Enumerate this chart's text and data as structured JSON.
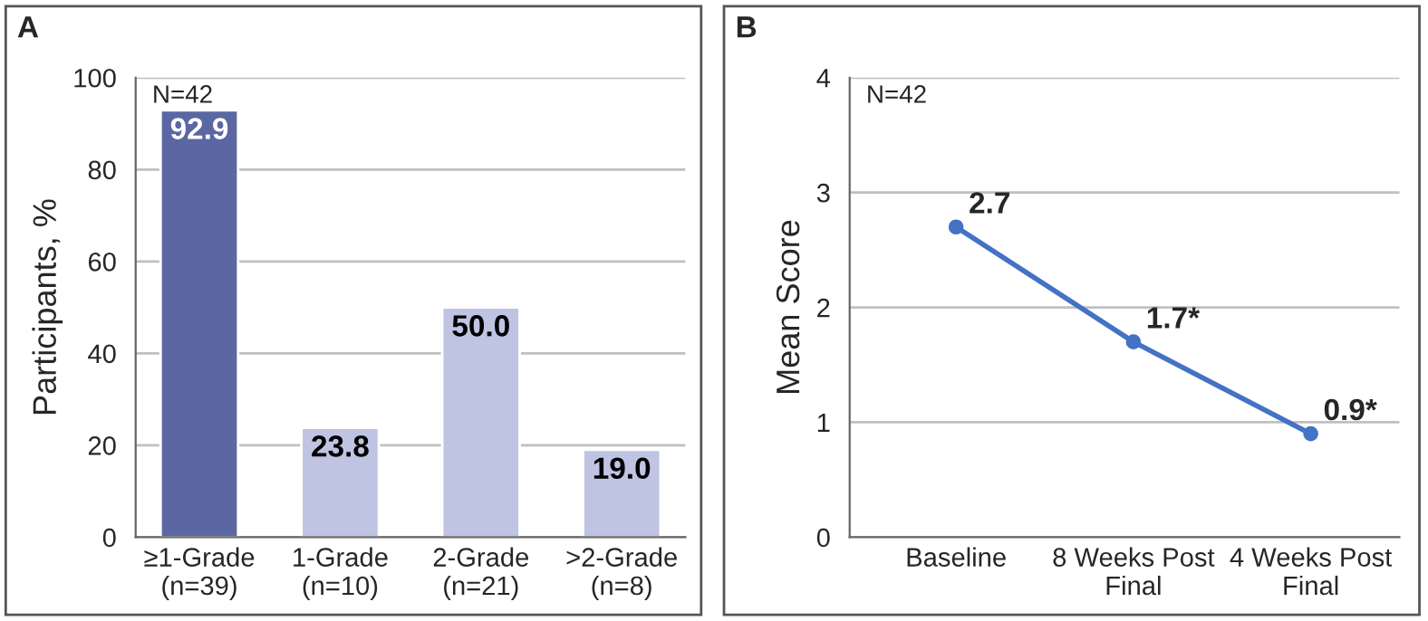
{
  "chart_data": [
    {
      "type": "bar",
      "title": "A",
      "ylabel": "Participants, %",
      "categories": [
        "≥1-Grade\n(n=39)",
        "1-Grade\n(n=10)",
        "2-Grade\n(n=21)",
        ">2-Grade\n(n=8)"
      ],
      "values": [
        92.9,
        23.8,
        50.0,
        19.0
      ],
      "colors": [
        "#5b67a3",
        "#bfc4e2",
        "#bfc4e2",
        "#bfc4e2"
      ],
      "value_labels": [
        "92.9",
        "23.8",
        "50.0",
        "19.0"
      ],
      "ylim": [
        0,
        100
      ],
      "yticks": [
        0,
        20,
        40,
        60,
        80,
        100
      ],
      "grid": "y",
      "annotations": [
        "N=42"
      ]
    },
    {
      "type": "line",
      "title": "B",
      "ylabel": "Mean Score",
      "categories": [
        "Baseline",
        "8 Weeks Post\nFinal",
        "4 Weeks Post\nFinal"
      ],
      "series": [
        {
          "color": "#4472c4",
          "values": [
            2.7,
            1.7,
            0.9
          ]
        }
      ],
      "value_labels": [
        "2.7",
        "1.7*",
        "0.9*"
      ],
      "marker": "circle",
      "line_style": "solid",
      "ylim": [
        0,
        4
      ],
      "yticks": [
        0,
        1,
        2,
        3,
        4
      ],
      "grid": "y",
      "annotations": [
        "N=42"
      ]
    }
  ]
}
